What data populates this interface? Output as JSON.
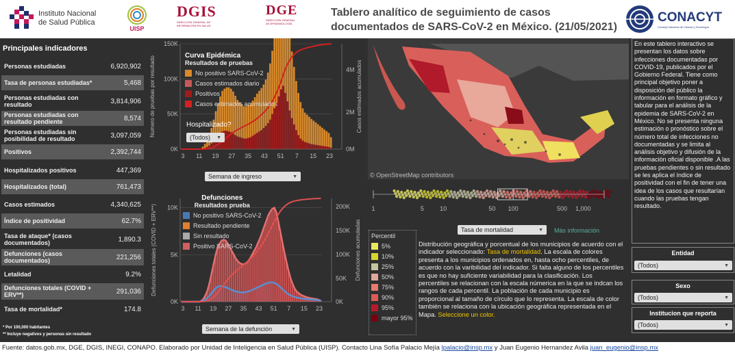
{
  "header": {
    "inst_name_line1": "Instituto Nacional",
    "inst_name_line2": "de Salud Pública",
    "uisp": "UISP",
    "dgis": "DGIS",
    "dgis_sub1": "DIRECCIÓN GENERAL DE",
    "dgis_sub2": "INFORMACIÓN EN SALUD",
    "dge": "DGE",
    "dge_sub1": "DIRECCIÓN GENERAL",
    "dge_sub2": "DE EPIDEMIOLOGÍA",
    "title": "Tablero analítico de seguimiento de casos documentados de SARS-CoV-2 en México. (21/05/2021)",
    "conacyt": "CONACYT",
    "conacyt_sub": "Consejo Nacional de Ciencia y Tecnología"
  },
  "indicators": {
    "heading": "Principales indicadores",
    "rows": [
      {
        "label": "Personas estudiadas",
        "value": "6,920,902"
      },
      {
        "label": "Tasa de personas estudiadas*",
        "value": "5,468"
      },
      {
        "label": "Personas estudiadas con resultado",
        "value": "3,814,906"
      },
      {
        "label": "Personas estudiadas con resultado pendiente",
        "value": "8,574"
      },
      {
        "label": "Personas estudiadas sin posibilidad de resultado",
        "value": "3,097,059"
      },
      {
        "label": "Positivos",
        "value": "2,392,744"
      },
      {
        "label": "Hospitalizados positivos",
        "value": "447,369"
      },
      {
        "label": "Hospitalizados (total)",
        "value": "761,473"
      },
      {
        "label": "Casos estimados",
        "value": "4,340,625"
      },
      {
        "label": "Índice de positividad",
        "value": "62.7%"
      },
      {
        "label": "Tasa de ataque* (casos documentados)",
        "value": "1,890.3"
      },
      {
        "label": "Defunciones (casos documentados)",
        "value": "221,256"
      },
      {
        "label": "Letalidad",
        "value": "9.2%"
      },
      {
        "label": "Defunciones totales (COVID + ERV**)",
        "value": "291,036"
      },
      {
        "label": "Tasa de mortalidad*",
        "value": "174.8"
      }
    ],
    "note1": "*   Por 100,000 habitantes",
    "note2": "**  Incluye negativos y personas sin resultado"
  },
  "epi_chart": {
    "title": "Curva Epidémica",
    "subtitle": "Resultados de pruebas",
    "legend": [
      "No positivo SARS-CoV-2",
      "Casos estimados diario",
      "Positivos",
      "Casos estimados acumulados"
    ],
    "hosp_label": "Hospitalizado?",
    "hosp_select": "(Todos)",
    "week_select": "Semana de ingreso",
    "ylabel_left": "Numero de pruebas por resultado",
    "ylabel_right": "Casos estimados acumulados",
    "yticks_left": [
      "150K",
      "100K",
      "50K",
      "0K"
    ],
    "yticks_right": [
      "4M",
      "2M",
      "0M"
    ],
    "xticks": [
      "3",
      "11",
      "19",
      "27",
      "35",
      "43",
      "51",
      "7",
      "15",
      "23"
    ]
  },
  "def_chart": {
    "title": "Defunciones",
    "subtitle": "Resultados  prueba",
    "legend": [
      "No positivo SARS-CoV-2",
      "Resultado pendiente",
      "Sin resultado",
      "Positivo SARS-CoV-2"
    ],
    "week_select": "Semana de la defunción",
    "ylabel_left": "Defunciones totales (COVID + ERV**)",
    "ylabel_right": "Defunciones acumuladas",
    "yticks_left": [
      "10K",
      "5K",
      "0K"
    ],
    "yticks_right": [
      "200K",
      "150K",
      "100K",
      "50K",
      "0K"
    ],
    "xticks": [
      "3",
      "11",
      "19",
      "27",
      "35",
      "43",
      "51",
      "7",
      "15",
      "23"
    ]
  },
  "chart_data": [
    {
      "type": "bar",
      "title": "Curva Epidémica",
      "subtitle": "Resultados de pruebas",
      "xlabel": "Semana de ingreso",
      "ylabel": "Numero de pruebas por resultado",
      "ylim": [
        0,
        150000
      ],
      "x": [
        1,
        2,
        3,
        4,
        5,
        6,
        7,
        8,
        9,
        10,
        11,
        12,
        13,
        14,
        15,
        16,
        17,
        18,
        19,
        20,
        21,
        22,
        23,
        24,
        25,
        26,
        27,
        28,
        29,
        30,
        31,
        32,
        33,
        34,
        35,
        36,
        37,
        38,
        39,
        40,
        41,
        42,
        43,
        44,
        45,
        46,
        47,
        48,
        49,
        50,
        51,
        52,
        53,
        54,
        55,
        56,
        57,
        58,
        59,
        60,
        61,
        62,
        63,
        64,
        65,
        66,
        67,
        68,
        69,
        70
      ],
      "series": [
        {
          "name": "No positivo SARS-CoV-2",
          "values": [
            0,
            0,
            0,
            0,
            0,
            0,
            0,
            0,
            0,
            1000,
            3000,
            6000,
            10000,
            15000,
            22000,
            30000,
            38000,
            45000,
            52000,
            58000,
            60000,
            62000,
            63000,
            62000,
            60000,
            56000,
            52000,
            50000,
            48000,
            46000,
            46000,
            47000,
            48000,
            50000,
            53000,
            56000,
            58000,
            60000,
            62000,
            66000,
            72000,
            80000,
            90000,
            100000,
            110000,
            125000,
            140000,
            150000,
            140000,
            125000,
            110000,
            95000,
            82000,
            70000,
            60000,
            52000,
            46000,
            42000,
            40000,
            38000,
            36000,
            34000,
            32000,
            30000,
            28000,
            26000,
            24000,
            22000,
            20000,
            15000
          ]
        },
        {
          "name": "Positivos",
          "values": [
            0,
            0,
            0,
            0,
            0,
            0,
            0,
            0,
            0,
            0,
            500,
            1500,
            3000,
            5000,
            8000,
            12000,
            16000,
            20000,
            23000,
            25000,
            26000,
            26000,
            25000,
            24000,
            22000,
            20000,
            18000,
            17000,
            16000,
            15000,
            15000,
            16000,
            17000,
            19000,
            21000,
            23000,
            25000,
            27000,
            30000,
            33000,
            37000,
            42000,
            50000,
            58000,
            66000,
            75000,
            85000,
            90000,
            80000,
            68000,
            55000,
            44000,
            35000,
            27000,
            20000,
            15000,
            12000,
            10000,
            9000,
            8000,
            7000,
            6500,
            6000,
            5500,
            5000,
            4500,
            4000,
            3500,
            3000,
            2000
          ]
        }
      ]
    },
    {
      "type": "bar",
      "title": "Defunciones",
      "subtitle": "Resultados  prueba",
      "xlabel": "Semana de la defunción",
      "ylabel": "Defunciones totales (COVID + ERV**)",
      "ylim": [
        0,
        11000
      ],
      "x": [
        1,
        2,
        3,
        4,
        5,
        6,
        7,
        8,
        9,
        10,
        11,
        12,
        13,
        14,
        15,
        16,
        17,
        18,
        19,
        20,
        21,
        22,
        23,
        24,
        25,
        26,
        27,
        28,
        29,
        30,
        31,
        32,
        33,
        34,
        35,
        36,
        37,
        38,
        39,
        40,
        41,
        42,
        43,
        44,
        45,
        46,
        47,
        48,
        49,
        50,
        51,
        52,
        53,
        54,
        55,
        56,
        57,
        58,
        59,
        60,
        61,
        62,
        63,
        64,
        65,
        66,
        67,
        68,
        69,
        70
      ],
      "series": [
        {
          "name": "Positivo SARS-CoV-2",
          "values": [
            0,
            0,
            0,
            0,
            0,
            0,
            0,
            0,
            0,
            0,
            100,
            300,
            700,
            1200,
            2000,
            3000,
            4000,
            5000,
            5800,
            6200,
            6500,
            6600,
            6500,
            6200,
            5800,
            5400,
            5000,
            4600,
            4300,
            4100,
            4000,
            4000,
            4100,
            4300,
            4600,
            5000,
            5400,
            5800,
            6300,
            6800,
            7400,
            8000,
            8600,
            9200,
            9600,
            9900,
            10000,
            9500,
            8500,
            7400,
            6300,
            5200,
            4200,
            3300,
            2500,
            1900,
            1400,
            1100,
            900,
            750,
            650,
            550,
            480,
            420,
            380,
            340,
            300,
            260,
            200,
            100
          ]
        },
        {
          "name": "No positivo SARS-CoV-2",
          "values": [
            0,
            0,
            0,
            0,
            0,
            0,
            0,
            0,
            0,
            0,
            50,
            120,
            250,
            420,
            650,
            900,
            1200,
            1450,
            1600,
            1650,
            1650,
            1600,
            1550,
            1450,
            1350,
            1250,
            1150,
            1100,
            1050,
            1000,
            980,
            990,
            1020,
            1080,
            1150,
            1250,
            1350,
            1450,
            1550,
            1650,
            1750,
            1850,
            1950,
            2000,
            2050,
            2050,
            2000,
            1900,
            1750,
            1550,
            1350,
            1150,
            950,
            800,
            680,
            580,
            500,
            440,
            400,
            360,
            330,
            300,
            280,
            260,
            240,
            220,
            200,
            180,
            150,
            80
          ]
        }
      ]
    }
  ],
  "map": {
    "attribution": "© OpenStreetMap contributors"
  },
  "boxplot": {
    "ticks": [
      "1",
      "5",
      "10",
      "50",
      "100",
      "500",
      "1,000"
    ],
    "select": "Tasa de mortalidad",
    "more": "Más información"
  },
  "percentil": {
    "heading": "Percentil",
    "items": [
      {
        "label": "5%",
        "color": "#e8e860"
      },
      {
        "label": "10%",
        "color": "#d6d630"
      },
      {
        "label": "25%",
        "color": "#c4c4a0"
      },
      {
        "label": "50%",
        "color": "#e0a898"
      },
      {
        "label": "75%",
        "color": "#e87a70"
      },
      {
        "label": "90%",
        "color": "#e05a55"
      },
      {
        "label": "95%",
        "color": "#b81a2a"
      },
      {
        "label": "mayor 95%",
        "color": "#7a0010"
      }
    ]
  },
  "description": {
    "part1": "Distribución geográfica y porcentual de los municipios de acuerdo con el indicador seleccionado: ",
    "highlight": "Tasa de mortalidad",
    "part2": ". La escala de colores presenta a los municipios ordenados en, hasta ocho percentiles, de acuerdo con la varibilidad del indicador. Si falta alguno de los percentiles es que no hay suficiente variabilidad para la clasificación. Los percentiles se relacionan con la escala númerica en la que se indcan los rangos de cada percentil. La población de cada municipio es proporcional al tamaño de círculo que lo representa. La escala de color también se relaciona con la ubicación geográfica representada en el Mapa. ",
    "cta": "Seleccione un color."
  },
  "side_text": "En este tablero interactivo se presentan los datos sobre infecciones documentadas por COVID-19, publicados por el Gobierno Federal. Tiene como principal objetivo poner a disposición del público la información en formato gráfico y tabular para el análisis de la epidemia de SARS-CoV-2 en México. No se presenta ninguna estimación o pronóstico sobre el número total de infecciones no documentadas y se limita al análisis objetivo y difusión de la información oficial disponible .A las pruebas pendientes o sin resultado se les aplica el índice de positividad con el fin de tener una idea de los casos que resultarían cuando las pruebas tengan resultado.",
  "filters": {
    "entidad_label": "Entidad",
    "entidad_value": "(Todos)",
    "sexo_label": "Sexo",
    "sexo_value": "(Todos)",
    "inst_label": "Institucion que reporta",
    "inst_value": "(Todos)"
  },
  "footer": {
    "text": "Fuente: datos.gob.mx, DGE, DGIS, INEGI, CONAPO.  Elaborado por Unidad de Inteligencia en Salud  Pública (UISP). Contacto Lina Sofía Palacio Mejía ",
    "email1": "lpalacio@insp.mx",
    "mid": " y Juan Eugenio Hernandez Avila ",
    "email2": "juan_eugenio@insp.mx"
  }
}
